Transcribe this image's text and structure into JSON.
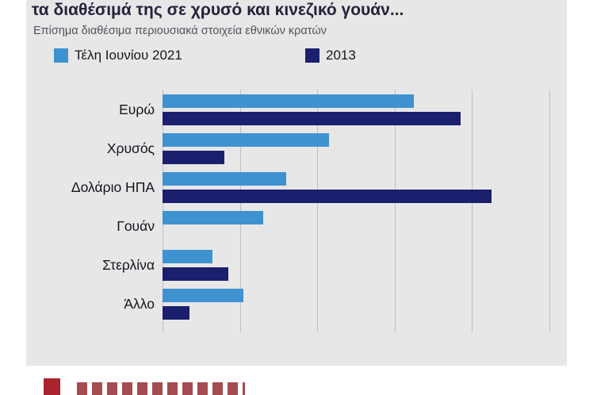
{
  "page": {
    "title": "τα διαθέσιμά της σε χρυσό και κινεζικό γουάν...",
    "subtitle": "Επίσημα διαθέσιμα περιουσιακά στοιχεία εθνικών κρατών"
  },
  "legend": [
    {
      "label": "Τέλη Ιουνίου 2021",
      "color": "#3e92cf"
    },
    {
      "label": "2013",
      "color": "#1a1f6e"
    }
  ],
  "colors": {
    "background": "#e7e7e8",
    "gridline": "#bfbfbf",
    "series_2021": "#3e92cf",
    "series_2013": "#1a1f6e",
    "logo_red": "#a9242c"
  },
  "chart_data": {
    "type": "bar",
    "orientation": "horizontal",
    "title": "τα διαθέσιμά της σε χρυσό και κινεζικό γουάν...",
    "subtitle": "Επίσημα διαθέσιμα περιουσιακά στοιχεία εθνικών κρατών",
    "categories": [
      "Ευρώ",
      "Χρυσός",
      "Δολάριο ΗΠΑ",
      "Γουάν",
      "Στερλίνα",
      "Άλλο"
    ],
    "series": [
      {
        "name": "Τέλη Ιουνίου 2021",
        "color": "#3e92cf",
        "values": [
          32.5,
          21.5,
          16,
          13,
          6.5,
          10.5
        ]
      },
      {
        "name": "2013",
        "color": "#1a1f6e",
        "values": [
          38.5,
          8,
          42.5,
          0,
          8.5,
          3.5
        ]
      }
    ],
    "xlabel": "",
    "ylabel": "",
    "xlim": [
      0,
      50
    ],
    "gridline_step": 10,
    "grid": true,
    "legend_position": "top"
  }
}
